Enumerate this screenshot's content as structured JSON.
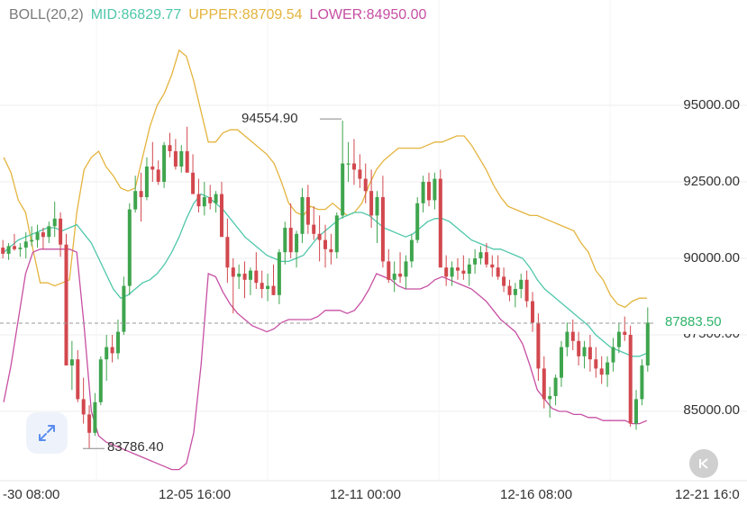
{
  "legend": {
    "boll": "BOLL(20,2)",
    "mid": "MID:86829.77",
    "upper": "UPPER:88709.54",
    "lower": "LOWER:84950.00"
  },
  "colors": {
    "mid": "#4fc7aa",
    "upper": "#e4b43e",
    "lower": "#c74fa3",
    "up_candle": "#3fa54e",
    "down_candle": "#d2484e",
    "grid": "#ececec",
    "price_line": "#9a9a9a"
  },
  "icons": {
    "expand": "expand-arrows-icon",
    "back": "skip-back-icon"
  },
  "chart_data": {
    "type": "candlestick",
    "title": "BOLL(20,2)",
    "ylim": [
      82800,
      97200
    ],
    "y_ticks": [
      "95000.00",
      "92500.00",
      "90000.00",
      "87500.00",
      "85000.00"
    ],
    "x_ticks": [
      "-30 08:00",
      "12-05 16:00",
      "12-11 00:00",
      "12-16 08:00",
      "12-21 16:0"
    ],
    "last_price": "87883.50",
    "max_label": "94554.90",
    "min_label": "83786.40",
    "indicator": {
      "mid": 86829.77,
      "upper": 88709.54,
      "lower": 84950.0
    },
    "series_upper": [
      93300,
      92800,
      91900,
      91500,
      90300,
      89200,
      89200,
      89100,
      89200,
      89300,
      91500,
      92900,
      93300,
      93500,
      93000,
      92700,
      92300,
      92200,
      92300,
      93300,
      94300,
      95000,
      95400,
      96000,
      96800,
      96600,
      95800,
      94800,
      93800,
      93800,
      94100,
      94200,
      94200,
      94000,
      93800,
      93600,
      93400,
      93100,
      92500,
      91800,
      91500,
      91400,
      91700,
      91600,
      91600,
      91800,
      91600,
      91400,
      91500,
      91800,
      92400,
      92900,
      93200,
      93400,
      93600,
      93600,
      93600,
      93600,
      93700,
      93800,
      93800,
      93900,
      94000,
      94000,
      93700,
      93300,
      92900,
      92400,
      92000,
      91700,
      91600,
      91500,
      91400,
      91400,
      91300,
      91200,
      91100,
      91000,
      90900,
      90500,
      90200,
      89600,
      89300,
      88800,
      88500,
      88400,
      88600,
      88700,
      88700
    ],
    "series_mid": [
      90200,
      90400,
      90600,
      90700,
      90800,
      90900,
      91000,
      91000,
      90900,
      91000,
      91100,
      90800,
      90500,
      90000,
      89500,
      89000,
      88700,
      88800,
      89000,
      89200,
      89300,
      89500,
      89800,
      90200,
      90700,
      91300,
      91800,
      92100,
      92000,
      91800,
      91600,
      91300,
      91000,
      90700,
      90500,
      90300,
      90100,
      90000,
      89900,
      89900,
      90000,
      90100,
      90400,
      90700,
      90900,
      91100,
      91300,
      91400,
      91500,
      91500,
      91400,
      91200,
      91000,
      90900,
      90800,
      90700,
      90800,
      91000,
      91200,
      91300,
      91300,
      91200,
      91000,
      90800,
      90600,
      90500,
      90400,
      90300,
      90300,
      90200,
      90100,
      90000,
      89700,
      89300,
      89000,
      88800,
      88600,
      88400,
      88200,
      88000,
      87800,
      87500,
      87300,
      87100,
      87000,
      86900,
      86800,
      86800,
      86900
    ],
    "series_lower": [
      85300,
      86500,
      88000,
      89500,
      90200,
      90300,
      90300,
      90300,
      90300,
      90300,
      90200,
      87800,
      85000,
      84200,
      84000,
      83900,
      83800,
      83700,
      83600,
      83500,
      83400,
      83300,
      83200,
      83100,
      83100,
      83300,
      84300,
      86500,
      89500,
      89400,
      88900,
      88500,
      88200,
      88000,
      87800,
      87700,
      87600,
      87700,
      87900,
      88000,
      88000,
      88000,
      88000,
      88100,
      88300,
      88300,
      88300,
      88200,
      88300,
      88600,
      89000,
      89500,
      89400,
      89300,
      89100,
      89000,
      89000,
      89000,
      89100,
      89300,
      89400,
      89300,
      89200,
      89100,
      89000,
      88800,
      88600,
      88300,
      88000,
      87800,
      87600,
      87200,
      86500,
      85700,
      85400,
      85100,
      85000,
      85000,
      84900,
      84900,
      84800,
      84800,
      84700,
      84700,
      84700,
      84700,
      84600,
      84600,
      84700
    ],
    "candles_ohlc": [
      [
        90350,
        90600,
        90000,
        90150
      ],
      [
        90150,
        90500,
        89950,
        90400
      ],
      [
        90400,
        90800,
        90250,
        90300
      ],
      [
        90300,
        90500,
        90050,
        90350
      ],
      [
        90350,
        90850,
        90000,
        90550
      ],
      [
        90550,
        91050,
        90400,
        90600
      ],
      [
        90600,
        91100,
        90350,
        90850
      ],
      [
        90850,
        91000,
        90300,
        90700
      ],
      [
        90700,
        91200,
        90500,
        91050
      ],
      [
        91050,
        91850,
        90700,
        91300
      ],
      [
        91300,
        91500,
        90050,
        90450
      ],
      [
        90450,
        90800,
        86500,
        86500
      ],
      [
        86500,
        87300,
        85700,
        86700
      ],
      [
        86700,
        87000,
        85300,
        85400
      ],
      [
        85400,
        86100,
        84600,
        84900
      ],
      [
        84900,
        85200,
        83800,
        84300
      ],
      [
        84300,
        85600,
        84200,
        85300
      ],
      [
        85300,
        86800,
        85200,
        86700
      ],
      [
        86700,
        87500,
        86000,
        87100
      ],
      [
        87100,
        87500,
        86600,
        86900
      ],
      [
        86900,
        88000,
        86700,
        87600
      ],
      [
        87600,
        89400,
        87500,
        89100
      ],
      [
        89100,
        91800,
        88800,
        91600
      ],
      [
        91600,
        92700,
        91500,
        92200
      ],
      [
        92200,
        92800,
        91200,
        92000
      ],
      [
        92000,
        93300,
        91900,
        93000
      ],
      [
        93000,
        93800,
        92500,
        92900
      ],
      [
        92900,
        93200,
        92400,
        92500
      ],
      [
        92500,
        93800,
        92300,
        93700
      ],
      [
        93700,
        94100,
        93300,
        93500
      ],
      [
        93500,
        93900,
        92900,
        93000
      ],
      [
        93000,
        93700,
        92800,
        93500
      ],
      [
        93500,
        94300,
        93000,
        92800
      ],
      [
        92800,
        93400,
        92200,
        92100
      ],
      [
        92100,
        92600,
        91500,
        91700
      ],
      [
        91700,
        92500,
        91400,
        92000
      ],
      [
        92000,
        92400,
        91600,
        91800
      ],
      [
        91800,
        92200,
        91500,
        92100
      ],
      [
        92100,
        92500,
        91200,
        90700
      ],
      [
        90700,
        91300,
        89200,
        89700
      ],
      [
        89700,
        90000,
        88200,
        89400
      ],
      [
        89400,
        89800,
        89000,
        89500
      ],
      [
        89500,
        89900,
        88700,
        89300
      ],
      [
        89300,
        89700,
        88800,
        89600
      ],
      [
        89600,
        90200,
        89000,
        89200
      ],
      [
        89200,
        89600,
        88700,
        89000
      ],
      [
        89000,
        89500,
        88600,
        89100
      ],
      [
        89100,
        89800,
        88800,
        88800
      ],
      [
        88800,
        90300,
        88500,
        90200
      ],
      [
        90200,
        91200,
        89800,
        91000
      ],
      [
        91000,
        91800,
        90000,
        90200
      ],
      [
        90200,
        90900,
        89700,
        90800
      ],
      [
        90800,
        92300,
        90500,
        92000
      ],
      [
        92000,
        92400,
        90800,
        91100
      ],
      [
        91100,
        91700,
        90600,
        90800
      ],
      [
        90800,
        91400,
        89900,
        90600
      ],
      [
        90600,
        91100,
        89700,
        90300
      ],
      [
        90300,
        90800,
        89800,
        90200
      ],
      [
        90200,
        91500,
        90000,
        91400
      ],
      [
        91400,
        94500,
        91300,
        93100
      ],
      [
        93100,
        93800,
        92500,
        93100
      ],
      [
        93100,
        93900,
        92400,
        92900
      ],
      [
        92900,
        93400,
        92300,
        92600
      ],
      [
        92600,
        93100,
        91800,
        92200
      ],
      [
        92200,
        92900,
        91000,
        91400
      ],
      [
        91400,
        92200,
        90500,
        92000
      ],
      [
        92000,
        92700,
        89700,
        89900
      ],
      [
        89900,
        90300,
        89200,
        89300
      ],
      [
        89300,
        89900,
        88900,
        89500
      ],
      [
        89500,
        90200,
        89200,
        89400
      ],
      [
        89400,
        90100,
        89000,
        89900
      ],
      [
        89900,
        90800,
        89700,
        90600
      ],
      [
        90600,
        92000,
        90500,
        91800
      ],
      [
        91800,
        92700,
        91500,
        92500
      ],
      [
        92500,
        92800,
        91700,
        91900
      ],
      [
        91900,
        92800,
        91600,
        92600
      ],
      [
        92600,
        92900,
        89800,
        89700
      ],
      [
        89700,
        90100,
        89100,
        89400
      ],
      [
        89400,
        89900,
        89100,
        89700
      ],
      [
        89700,
        90000,
        89300,
        89600
      ],
      [
        89600,
        90100,
        89300,
        89500
      ],
      [
        89500,
        90000,
        89100,
        89800
      ],
      [
        89800,
        90300,
        89500,
        90000
      ],
      [
        90000,
        90400,
        89800,
        90200
      ],
      [
        90200,
        90500,
        89700,
        89800
      ],
      [
        89800,
        90100,
        89400,
        89700
      ],
      [
        89700,
        90100,
        89300,
        89400
      ],
      [
        89400,
        89700,
        88900,
        89100
      ],
      [
        89100,
        89300,
        88600,
        88800
      ],
      [
        88800,
        89200,
        88400,
        89000
      ],
      [
        89000,
        89500,
        88700,
        89300
      ],
      [
        89300,
        89600,
        88400,
        88600
      ],
      [
        88600,
        88900,
        87600,
        87900
      ],
      [
        87900,
        88200,
        86000,
        86400
      ],
      [
        86400,
        86800,
        85100,
        85400
      ],
      [
        85400,
        85800,
        84800,
        85500
      ],
      [
        85500,
        86200,
        85200,
        86100
      ],
      [
        86100,
        87300,
        85800,
        87100
      ],
      [
        87100,
        87900,
        86800,
        87600
      ],
      [
        87600,
        88000,
        87000,
        87300
      ],
      [
        87300,
        87600,
        86500,
        86800
      ],
      [
        86800,
        87300,
        86400,
        87100
      ],
      [
        87100,
        87500,
        86300,
        86700
      ],
      [
        86700,
        87100,
        86100,
        86400
      ],
      [
        86400,
        86800,
        85900,
        86200
      ],
      [
        86200,
        86800,
        85800,
        86600
      ],
      [
        86600,
        87400,
        86300,
        87100
      ],
      [
        87100,
        87900,
        86900,
        87600
      ],
      [
        87600,
        88100,
        87300,
        87500
      ],
      [
        87500,
        87800,
        84500,
        84600
      ],
      [
        84600,
        85700,
        84400,
        85400
      ],
      [
        85400,
        86700,
        85200,
        86500
      ],
      [
        86500,
        88400,
        86300,
        87900
      ]
    ]
  }
}
